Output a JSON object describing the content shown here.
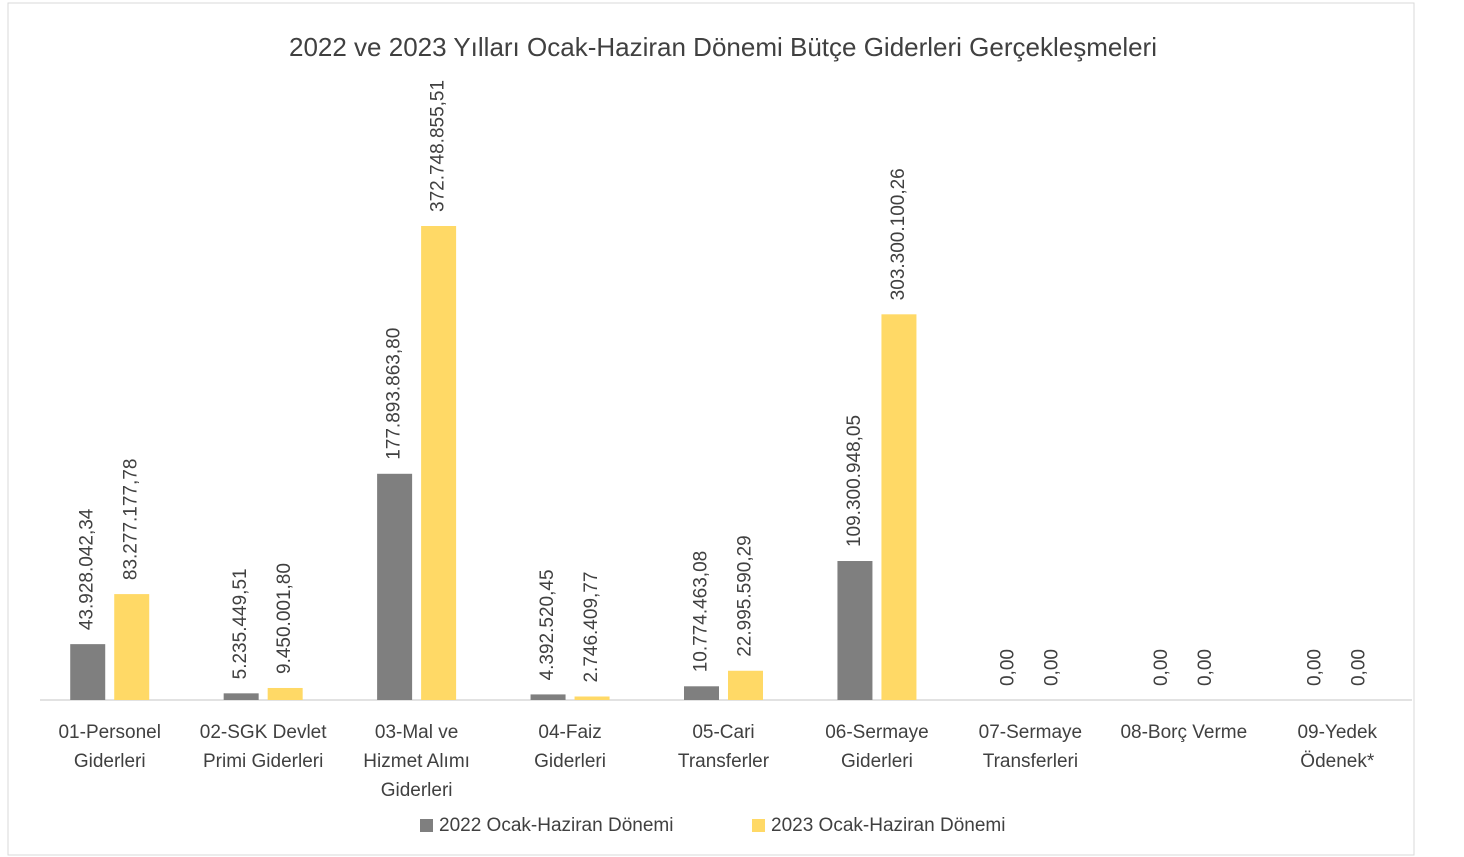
{
  "chart_data": {
    "type": "bar",
    "title": "2022 ve 2023 Yılları Ocak-Haziran Dönemi Bütçe Giderleri Gerçekleşmeleri",
    "categories": [
      "01-Personel Giderleri",
      "02-SGK Devlet Primi Giderleri",
      "03-Mal ve Hizmet Alımı Giderleri",
      "04-Faiz Giderleri",
      "05-Cari Transferler",
      "06-Sermaye Giderleri",
      "07-Sermaye Transferleri",
      "08-Borç Verme",
      "09-Yedek Ödenek*"
    ],
    "series": [
      {
        "name": "2022 Ocak-Haziran Dönemi",
        "color": "#7f7f7f",
        "values": [
          43928042.34,
          5235449.51,
          177893863.8,
          4392520.45,
          10774463.08,
          109300948.05,
          0,
          0,
          0
        ],
        "value_labels": [
          "43.928.042,34",
          "5.235.449,51",
          "177.893.863,80",
          "4.392.520,45",
          "10.774.463,08",
          "109.300.948,05",
          "0,00",
          "0,00",
          "0,00"
        ]
      },
      {
        "name": "2023 Ocak-Haziran Dönemi",
        "color": "#ffd966",
        "values": [
          83277177.78,
          9450001.8,
          372748855.51,
          2746409.77,
          22995590.29,
          303300100.26,
          0,
          0,
          0
        ],
        "value_labels": [
          "83.277.177,78",
          "9.450.001,80",
          "372.748.855,51",
          "2.746.409,77",
          "22.995.590,29",
          "303.300.100,26",
          "0,00",
          "0,00",
          "0,00"
        ]
      }
    ],
    "legend": "bottom"
  }
}
